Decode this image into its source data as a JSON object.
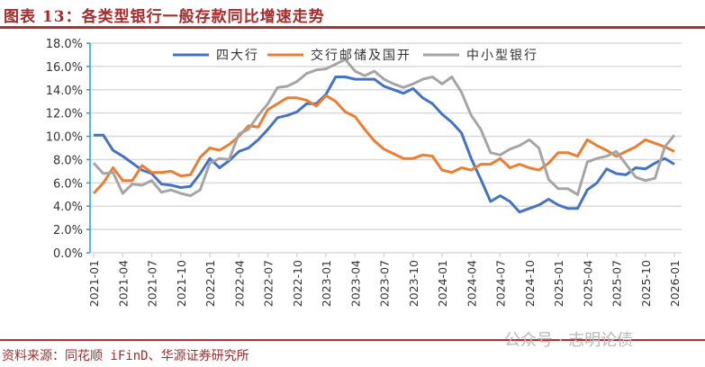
{
  "title": "图表 13：各类型银行一般存款同比增速走势",
  "source": "资料来源：同花顺 iFinD、华源证券研究所",
  "watermark": "公众号 · 志明论债",
  "chart_data": {
    "type": "line",
    "ylim": [
      0,
      18
    ],
    "yticks": [
      "0.0%",
      "2.0%",
      "4.0%",
      "6.0%",
      "8.0%",
      "10.0%",
      "12.0%",
      "14.0%",
      "16.0%",
      "18.0%"
    ],
    "xticks": [
      "2021-01",
      "2021-04",
      "2021-07",
      "2021-10",
      "2022-01",
      "2022-04",
      "2022-07",
      "2022-10",
      "2023-01",
      "2023-04",
      "2023-07",
      "2023-10",
      "2024-01",
      "2024-04",
      "2024-07",
      "2024-10",
      "2025-01",
      "2025-04",
      "2025-07",
      "2025-10",
      "2026-01"
    ],
    "x_start": "2021-01",
    "x_end": "2026-01",
    "grid": true,
    "legend": "top",
    "series": [
      {
        "name": "四大行",
        "color": "#4472c4",
        "values": [
          10.1,
          10.1,
          8.8,
          8.3,
          7.7,
          7.1,
          6.8,
          5.9,
          5.8,
          5.6,
          5.7,
          6.8,
          8.1,
          7.3,
          7.9,
          8.7,
          9.0,
          9.7,
          10.6,
          11.6,
          11.8,
          12.1,
          12.8,
          12.8,
          13.6,
          15.1,
          15.1,
          14.9,
          14.9,
          14.9,
          14.3,
          14.0,
          13.7,
          14.1,
          13.3,
          12.8,
          11.9,
          11.2,
          10.3,
          8.1,
          6.3,
          4.4,
          4.9,
          4.4,
          3.5,
          3.8,
          4.1,
          4.6,
          4.1,
          3.8,
          3.8,
          5.4,
          6.0,
          7.2,
          6.8,
          6.7,
          7.3,
          7.2,
          7.7,
          8.1,
          7.6
        ]
      },
      {
        "name": "交行邮储及国开",
        "color": "#ed7d31",
        "values": [
          5.1,
          6.0,
          7.3,
          6.2,
          6.2,
          7.5,
          6.9,
          6.9,
          7.0,
          6.6,
          6.7,
          8.2,
          9.0,
          8.8,
          9.3,
          10.0,
          10.9,
          10.8,
          12.3,
          12.8,
          13.3,
          13.3,
          13.1,
          12.6,
          13.5,
          13.0,
          12.1,
          11.7,
          10.6,
          9.6,
          8.9,
          8.5,
          8.1,
          8.1,
          8.4,
          8.3,
          7.1,
          6.9,
          7.3,
          7.1,
          7.6,
          7.6,
          8.1,
          7.3,
          7.6,
          7.3,
          7.1,
          7.7,
          8.6,
          8.6,
          8.3,
          9.7,
          9.2,
          8.8,
          8.3,
          8.7,
          9.1,
          9.7,
          9.4,
          9.1,
          8.7
        ]
      },
      {
        "name": "中小型银行",
        "color": "#a5a5a5",
        "values": [
          7.7,
          6.8,
          6.9,
          5.1,
          5.9,
          5.8,
          6.2,
          5.2,
          5.4,
          5.1,
          4.9,
          5.4,
          7.7,
          8.1,
          8.0,
          10.2,
          10.6,
          11.8,
          12.8,
          14.2,
          14.3,
          14.7,
          15.4,
          15.7,
          15.8,
          16.2,
          16.6,
          15.6,
          15.2,
          15.6,
          14.9,
          14.5,
          14.2,
          14.5,
          14.9,
          15.1,
          14.5,
          15.1,
          13.8,
          11.8,
          10.6,
          8.6,
          8.4,
          8.9,
          9.2,
          9.7,
          9.0,
          6.3,
          5.5,
          5.5,
          5.0,
          7.8,
          8.1,
          8.3,
          8.7,
          7.6,
          6.5,
          6.2,
          6.4,
          9.1,
          10.1
        ]
      }
    ]
  }
}
